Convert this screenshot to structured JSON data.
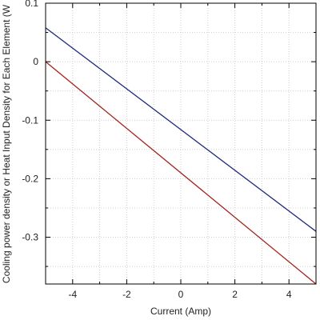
{
  "chart_data": {
    "type": "line",
    "title": "",
    "xlabel": "Current (Amp)",
    "ylabel": "Cooling power density or Heat Input Density for Each Element (W",
    "xlim": [
      -5,
      5
    ],
    "ylim": [
      -0.38,
      0.1
    ],
    "xticks": [
      -4,
      -2,
      0,
      2,
      4
    ],
    "yticks": [
      0.1,
      0,
      -0.1,
      -0.2,
      -0.3
    ],
    "grid": true,
    "series": [
      {
        "color": "#1f2a7a",
        "x": [
          -5,
          5
        ],
        "y": [
          0.058,
          -0.29
        ]
      },
      {
        "color": "#a3231d",
        "x": [
          -5,
          5
        ],
        "y": [
          0.0,
          -0.38
        ]
      }
    ]
  }
}
